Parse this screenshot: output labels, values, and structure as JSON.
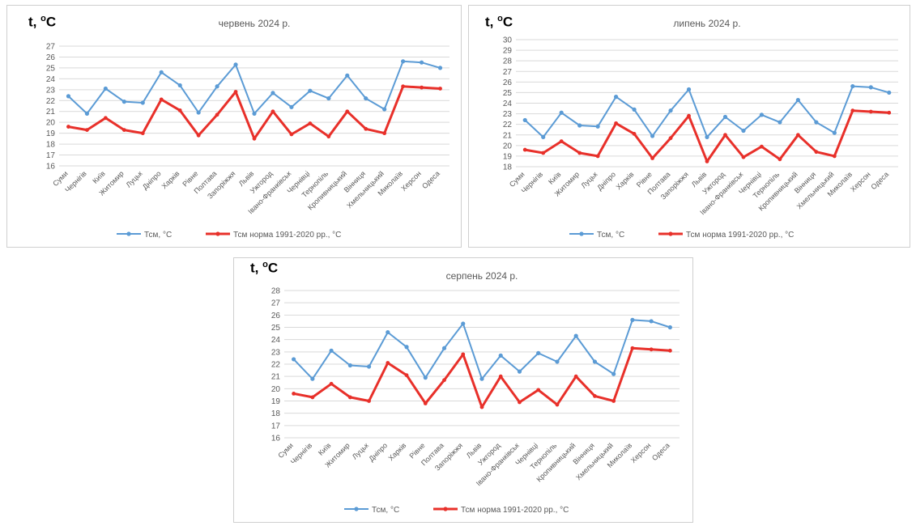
{
  "axis_unit_label": {
    "prefix": "t, ",
    "degree": "o",
    "unit": "C"
  },
  "colors": {
    "tsm": "#5b9bd5",
    "norm": "#e8302a",
    "grid": "#d9d9d9",
    "axis_text": "#595959"
  },
  "chart_data": [
    {
      "type": "line",
      "title": "червень 2024 р.",
      "categories": [
        "Суми",
        "Чернігів",
        "Київ",
        "Житомир",
        "Луцьк",
        "Дніпро",
        "Харків",
        "Рівне",
        "Полтава",
        "Запоріжжя",
        "Львів",
        "Ужгород",
        "Івано-Франківськ",
        "Чернівці",
        "Тернопіль",
        "Кропивницький",
        "Вінниця",
        "Хмельницький",
        "Миколаїв",
        "Херсон",
        "Одеса"
      ],
      "ylim": [
        16,
        27
      ],
      "yticks": [
        "16",
        "17",
        "18",
        "19",
        "20",
        "21",
        "22",
        "23",
        "24",
        "25",
        "26",
        "27"
      ],
      "grid": true,
      "legend_position": "bottom",
      "series": [
        {
          "name": "Тсм, °С",
          "values": [
            22.4,
            20.8,
            23.1,
            21.9,
            21.8,
            24.6,
            23.4,
            20.9,
            23.3,
            25.3,
            20.8,
            22.7,
            21.4,
            22.9,
            22.2,
            24.3,
            22.2,
            21.2,
            25.6,
            25.5,
            25.0
          ]
        },
        {
          "name": "Тсм норма 1991-2020 рр., °С",
          "values": [
            19.6,
            19.3,
            20.4,
            19.3,
            19.0,
            22.1,
            21.1,
            18.8,
            20.7,
            22.8,
            18.5,
            21.0,
            18.9,
            19.9,
            18.7,
            21.0,
            19.4,
            19.0,
            23.3,
            23.2,
            23.1
          ]
        }
      ]
    },
    {
      "type": "line",
      "title": "липень 2024 р.",
      "categories": [
        "Суми",
        "Чернігів",
        "Київ",
        "Житомир",
        "Луцьк",
        "Дніпро",
        "Харків",
        "Рівне",
        "Полтава",
        "Запоріжжя",
        "Львів",
        "Ужгород",
        "Івано-Франківськ",
        "Чернівці",
        "Тернопіль",
        "Кропивницький",
        "Вінниця",
        "Хмельницький",
        "Миколаїв",
        "Херсон",
        "Одеса"
      ],
      "ylim": [
        18,
        30
      ],
      "yticks": [
        "18",
        "19",
        "20",
        "21",
        "22",
        "23",
        "24",
        "25",
        "26",
        "27",
        "28",
        "29",
        "30"
      ],
      "grid": true,
      "legend_position": "bottom",
      "series": [
        {
          "name": "Тсм, °С",
          "values": [
            22.4,
            20.8,
            23.1,
            21.9,
            21.8,
            24.6,
            23.4,
            20.9,
            23.3,
            25.3,
            20.8,
            22.7,
            21.4,
            22.9,
            22.2,
            24.3,
            22.2,
            21.2,
            25.6,
            25.5,
            25.0
          ]
        },
        {
          "name": "Тсм норма 1991-2020 рр., °С",
          "values": [
            19.6,
            19.3,
            20.4,
            19.3,
            19.0,
            22.1,
            21.1,
            18.8,
            20.7,
            22.8,
            18.5,
            21.0,
            18.9,
            19.9,
            18.7,
            21.0,
            19.4,
            19.0,
            23.3,
            23.2,
            23.1
          ]
        }
      ]
    },
    {
      "type": "line",
      "title": "серпень 2024 р.",
      "categories": [
        "Суми",
        "Чернігів",
        "Київ",
        "Житомир",
        "Луцьк",
        "Дніпро",
        "Харків",
        "Рівне",
        "Полтава",
        "Запоріжжя",
        "Львів",
        "Ужгород",
        "Івано-Франківськ",
        "Чернівці",
        "Тернопіль",
        "Кропивницький",
        "Вінниця",
        "Хмельницький",
        "Миколаїв",
        "Херсон",
        "Одеса"
      ],
      "ylim": [
        16,
        28
      ],
      "yticks": [
        "16",
        "17",
        "18",
        "19",
        "20",
        "21",
        "22",
        "23",
        "24",
        "25",
        "26",
        "27",
        "28"
      ],
      "grid": true,
      "legend_position": "bottom",
      "series": [
        {
          "name": "Тсм, °С",
          "values": [
            22.4,
            20.8,
            23.1,
            21.9,
            21.8,
            24.6,
            23.4,
            20.9,
            23.3,
            25.3,
            20.8,
            22.7,
            21.4,
            22.9,
            22.2,
            24.3,
            22.2,
            21.2,
            25.6,
            25.5,
            25.0
          ]
        },
        {
          "name": "Тсм норма 1991-2020 рр., °С",
          "values": [
            19.6,
            19.3,
            20.4,
            19.3,
            19.0,
            22.1,
            21.1,
            18.8,
            20.7,
            22.8,
            18.5,
            21.0,
            18.9,
            19.9,
            18.7,
            21.0,
            19.4,
            19.0,
            23.3,
            23.2,
            23.1
          ]
        }
      ]
    }
  ]
}
